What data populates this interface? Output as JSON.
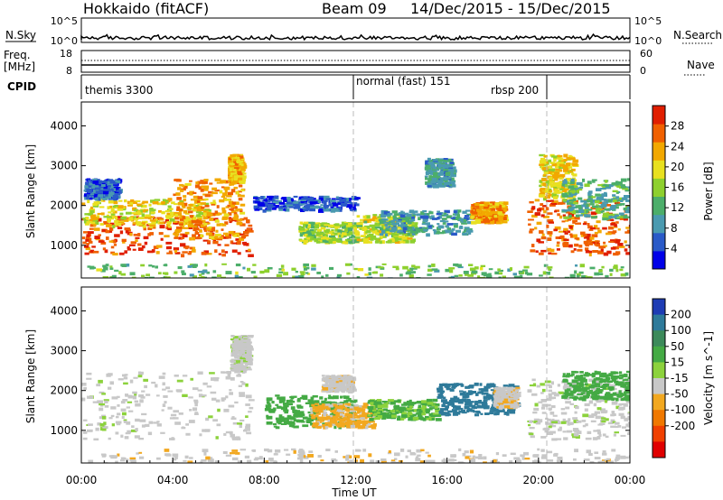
{
  "header": {
    "station": "Hokkaido (fitACF)",
    "beam": "Beam 09",
    "dates": "14/Dec/2015 - 15/Dec/2015"
  },
  "ancillary": {
    "nsky_label": "N.Sky",
    "nsearch_label": "N.Search",
    "nsky_ticks": [
      "10^5",
      "10^0"
    ],
    "nsearch_ticks": [
      "10^5",
      "10^0"
    ],
    "freq_label_1": "Freq.",
    "freq_label_2": "[MHz]",
    "freq_ticks": [
      "18",
      "8"
    ],
    "nave_label": "Nave",
    "nave_ticks": [
      "60",
      "0"
    ],
    "cpid_label": "CPID",
    "cpid_modes": [
      {
        "t": 0.1,
        "label": "themis 3300"
      },
      {
        "t": 12.05,
        "label": "normal (fast) 151"
      },
      {
        "t": 18.7,
        "label": "rbsp 200"
      }
    ],
    "cpid_boundaries_h": [
      12.0,
      20.6
    ]
  },
  "chart_data": [
    {
      "type": "heatmap",
      "name": "power",
      "ylabel": "Slant Range [km]",
      "ylim": [
        180,
        4600
      ],
      "yticks": [
        1000,
        2000,
        3000,
        4000
      ],
      "xlim_h": [
        0,
        24
      ],
      "colorbar": {
        "label": "Power [dB]",
        "ticks": [
          "4",
          "8",
          "12",
          "16",
          "20",
          "24",
          "28"
        ],
        "colors": [
          "#0000e8",
          "#2a5ac8",
          "#4a9ab0",
          "#4cae6a",
          "#8ed02e",
          "#e8e020",
          "#f2a800",
          "#f06000",
          "#e01e00"
        ]
      },
      "regions": [
        {
          "t": [
            0.0,
            7.3
          ],
          "r": [
            780,
            1750
          ],
          "level": 28
        },
        {
          "t": [
            0.0,
            5.5
          ],
          "r": [
            1500,
            2200
          ],
          "level": 20
        },
        {
          "t": [
            4.0,
            7.0
          ],
          "r": [
            1200,
            2700
          ],
          "level": 24
        },
        {
          "t": [
            6.4,
            7.0
          ],
          "r": [
            2600,
            3300
          ],
          "level": 22
        },
        {
          "t": [
            0.1,
            1.6
          ],
          "r": [
            2200,
            2700
          ],
          "level": 6
        },
        {
          "t": [
            7.5,
            12.0
          ],
          "r": [
            1900,
            2250
          ],
          "level": 5
        },
        {
          "t": [
            9.5,
            12.0
          ],
          "r": [
            1100,
            1600
          ],
          "level": 16
        },
        {
          "t": [
            12.0,
            14.5
          ],
          "r": [
            1100,
            1800
          ],
          "level": 18
        },
        {
          "t": [
            13.0,
            17.0
          ],
          "r": [
            1300,
            1900
          ],
          "level": 10
        },
        {
          "t": [
            17.0,
            18.5
          ],
          "r": [
            1600,
            2100
          ],
          "level": 24
        },
        {
          "t": [
            15.0,
            16.2
          ],
          "r": [
            2500,
            3200
          ],
          "level": 10
        },
        {
          "t": [
            19.5,
            24.0
          ],
          "r": [
            800,
            2200
          ],
          "level": 27
        },
        {
          "t": [
            20.0,
            21.5
          ],
          "r": [
            2200,
            3300
          ],
          "level": 20
        },
        {
          "t": [
            21.0,
            24.0
          ],
          "r": [
            1700,
            2700
          ],
          "level": 12
        },
        {
          "t": [
            0.0,
            24.0
          ],
          "r": [
            180,
            550
          ],
          "level": 14
        }
      ]
    },
    {
      "type": "heatmap",
      "name": "velocity",
      "ylabel": "Slant Range [km]",
      "ylim": [
        180,
        4600
      ],
      "yticks": [
        1000,
        2000,
        3000,
        4000
      ],
      "xaxis": {
        "ticks": [
          "00:00",
          "04:00",
          "08:00",
          "12:00",
          "16:00",
          "20:00",
          "00:00"
        ],
        "tick_hours": [
          0,
          4,
          8,
          12,
          16,
          20,
          24
        ],
        "label": "Time UT"
      },
      "xlim_h": [
        0,
        24
      ],
      "colorbar": {
        "label": "Velocity [m s^-1]",
        "ticks": [
          "200",
          "100",
          "50",
          "15",
          "-15",
          "-50",
          "-100",
          "-200"
        ],
        "colors": [
          "#1e3cb4",
          "#2e7a9a",
          "#3c8a5a",
          "#44aa44",
          "#8cd23c",
          "#c8c8c8",
          "#f2a820",
          "#f07800",
          "#f04000",
          "#e00000"
        ]
      },
      "regions": [
        {
          "t": [
            0.0,
            7.4
          ],
          "r": [
            800,
            2500
          ],
          "v": 0
        },
        {
          "t": [
            6.5,
            7.3
          ],
          "r": [
            2500,
            3400
          ],
          "v": 0
        },
        {
          "t": [
            8.0,
            12.0
          ],
          "r": [
            1100,
            1900
          ],
          "v": 30
        },
        {
          "t": [
            10.0,
            12.8
          ],
          "r": [
            1100,
            1700
          ],
          "v": -60
        },
        {
          "t": [
            10.5,
            11.8
          ],
          "r": [
            2000,
            2400
          ],
          "v": -40
        },
        {
          "t": [
            12.5,
            15.5
          ],
          "r": [
            1300,
            1800
          ],
          "v": 20
        },
        {
          "t": [
            15.5,
            19.0
          ],
          "r": [
            1400,
            2200
          ],
          "v": 120
        },
        {
          "t": [
            18.0,
            19.0
          ],
          "r": [
            1600,
            2100
          ],
          "v": -40
        },
        {
          "t": [
            19.5,
            24.0
          ],
          "r": [
            800,
            2300
          ],
          "v": 0
        },
        {
          "t": [
            21.0,
            24.0
          ],
          "r": [
            1800,
            2500
          ],
          "v": 30
        },
        {
          "t": [
            0.0,
            24.0
          ],
          "r": [
            180,
            550
          ],
          "v": -40
        }
      ]
    }
  ]
}
